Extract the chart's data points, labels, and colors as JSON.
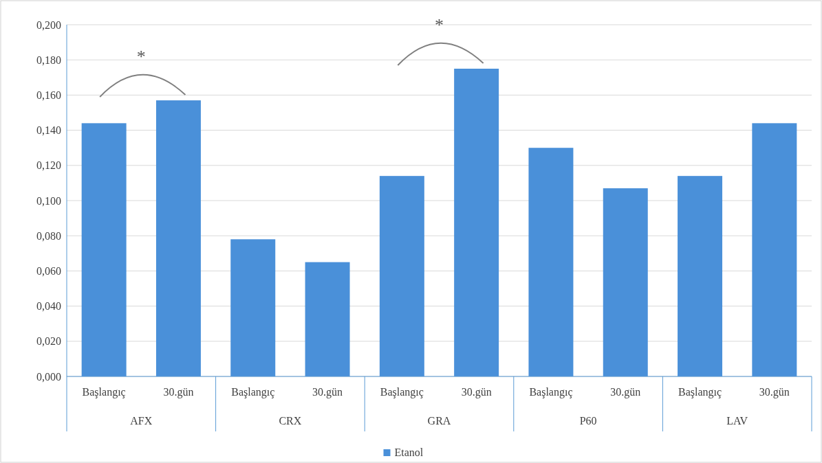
{
  "chart_data": {
    "type": "bar",
    "categories": [
      "Başlangıç",
      "30.gün",
      "Başlangıç",
      "30.gün",
      "Başlangıç",
      "30.gün",
      "Başlangıç",
      "30.gün",
      "Başlangıç",
      "30.gün"
    ],
    "series": [
      {
        "name": "Etanol",
        "color": "#4a90d9",
        "values": [
          0.144,
          0.157,
          0.078,
          0.065,
          0.114,
          0.175,
          0.13,
          0.107,
          0.114,
          0.144
        ]
      }
    ],
    "ylim": [
      0,
      0.2
    ],
    "yticks": [
      {
        "value": 0,
        "label": "0,000"
      },
      {
        "value": 0.02,
        "label": "0,020"
      },
      {
        "value": 0.04,
        "label": "0,040"
      },
      {
        "value": 0.06,
        "label": "0,060"
      },
      {
        "value": 0.08,
        "label": "0,080"
      },
      {
        "value": 0.1,
        "label": "0,100"
      },
      {
        "value": 0.12,
        "label": "0,120"
      },
      {
        "value": 0.14,
        "label": "0,140"
      },
      {
        "value": 0.16,
        "label": "0,160"
      },
      {
        "value": 0.18,
        "label": "0,180"
      },
      {
        "value": 0.2,
        "label": "0,200"
      }
    ],
    "grid": "y",
    "legend": "bottom",
    "annotations": [
      "AFX",
      "CRX",
      "GRA",
      "P60",
      "LAV",
      "*",
      "*"
    ]
  }
}
